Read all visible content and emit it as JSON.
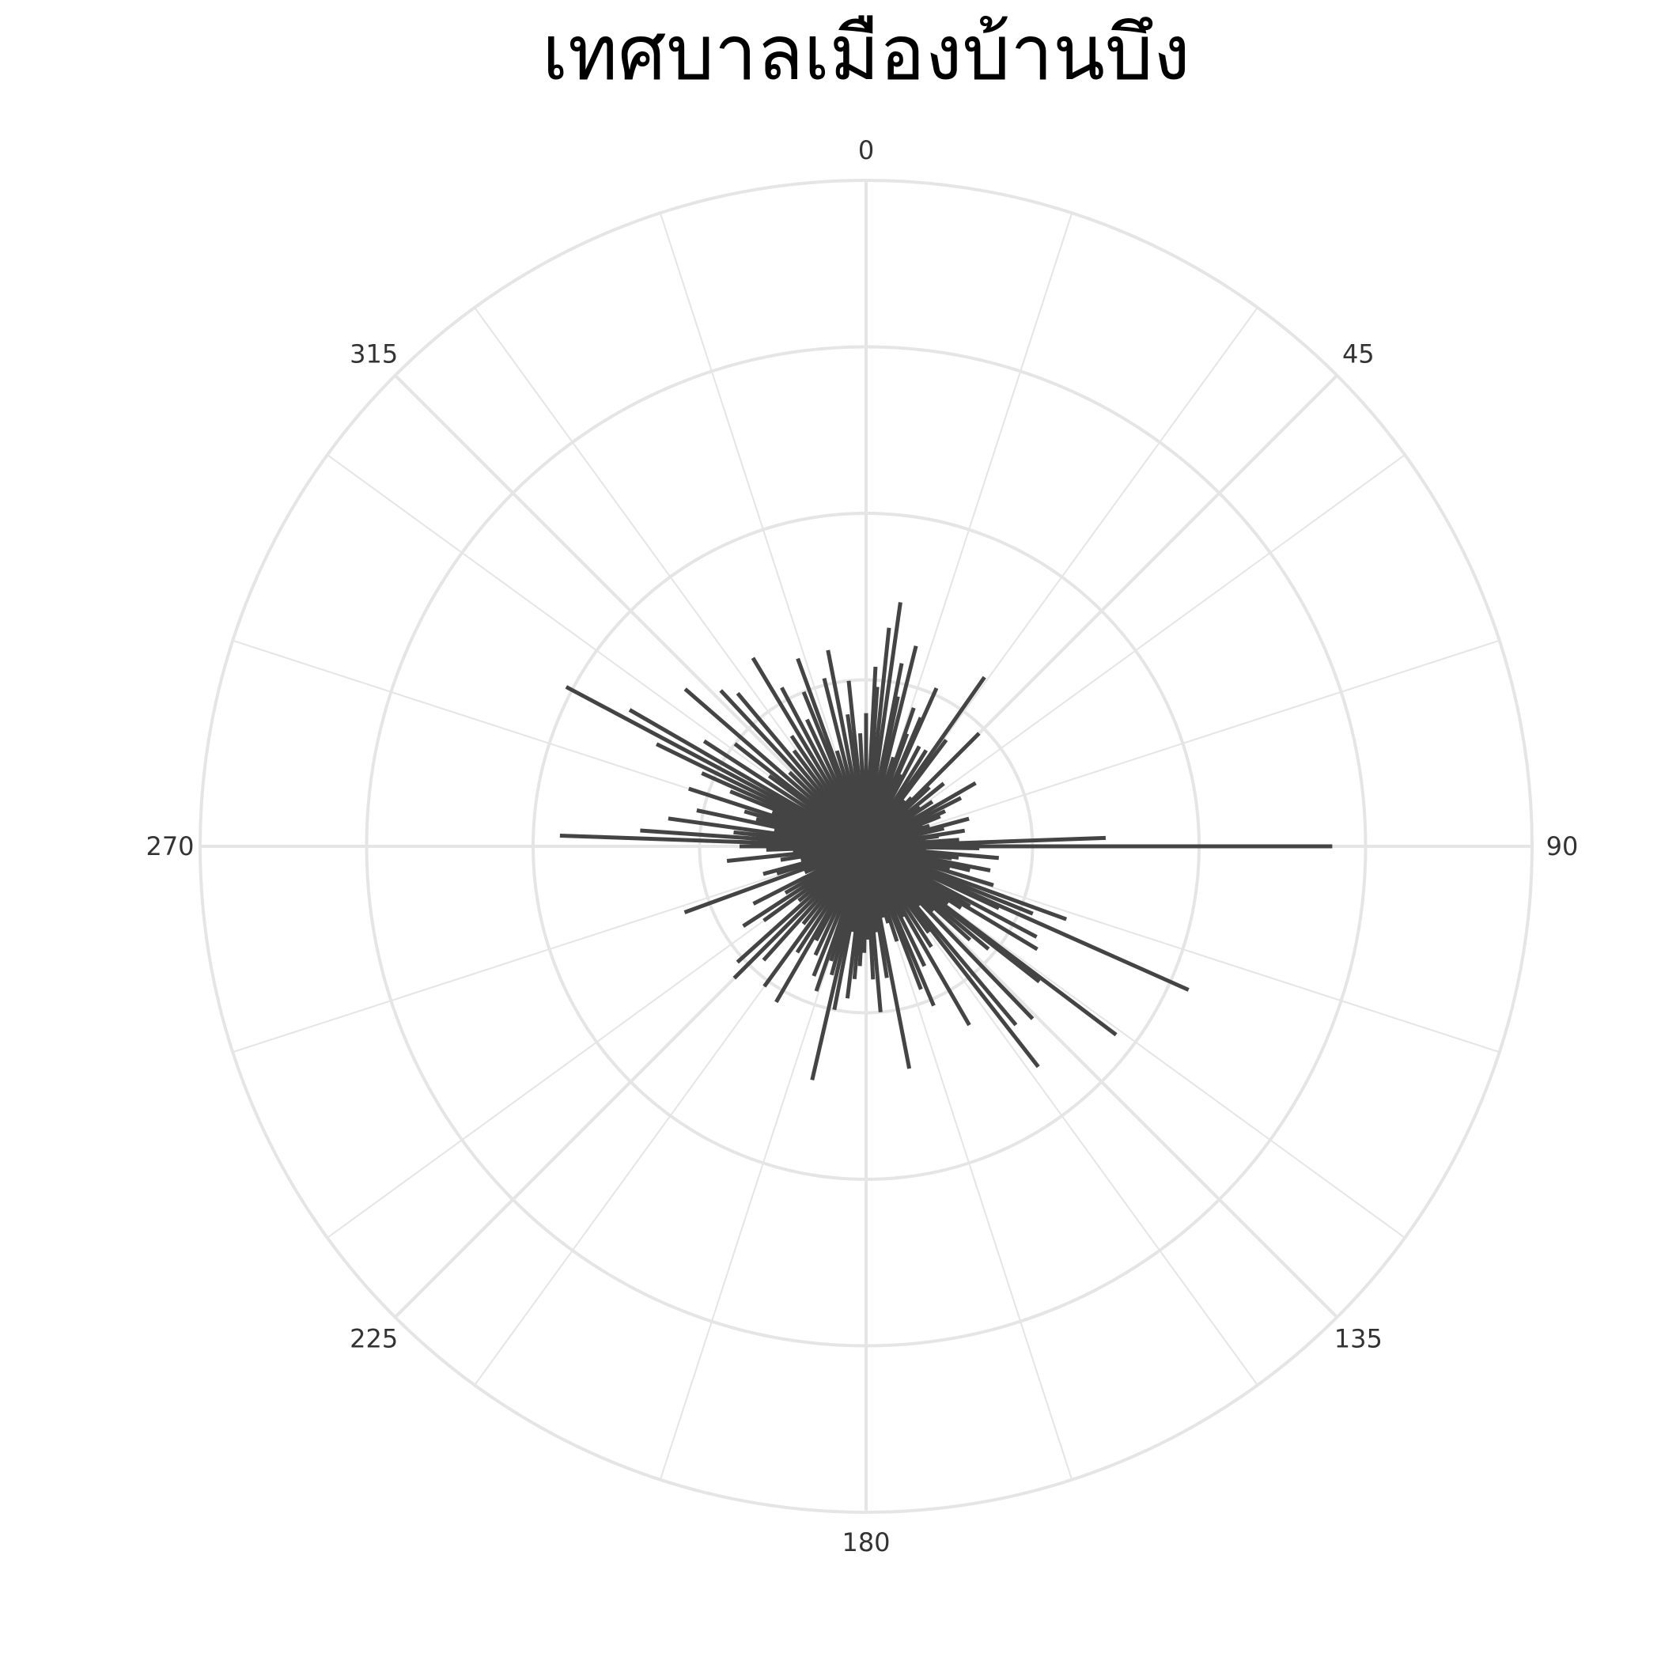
{
  "chart_data": {
    "type": "bar",
    "subtype": "polar-bar",
    "title": "เทศบาลเมืองบ้านบึง",
    "angular_axis": {
      "direction": "clockwise",
      "zero_at": "top",
      "tick_labels": [
        "0",
        "45",
        "90",
        "135",
        "180",
        "225",
        "270",
        "315"
      ]
    },
    "radial_axis": {
      "range": [
        0,
        100
      ],
      "gridlines": [
        25,
        50,
        75,
        100
      ],
      "tick_labels_visible": false
    },
    "grid": true,
    "legend": "none",
    "colors": {
      "bars": "#444444",
      "grid": "#e5e5e5",
      "ticks": "#333333",
      "title": "#000000"
    },
    "bars": {
      "theta": [
        0,
        3,
        4,
        6,
        8,
        11,
        12,
        14,
        17,
        19,
        20,
        23,
        24,
        26,
        28,
        32,
        35,
        37,
        40,
        43,
        45,
        47,
        51,
        54,
        56,
        60,
        63,
        66,
        68,
        70,
        72,
        75,
        77,
        79,
        81,
        82,
        84,
        86,
        88,
        90,
        91,
        93,
        95,
        97,
        98,
        99,
        101,
        103,
        105,
        107,
        108,
        110,
        112,
        114,
        115,
        118,
        120,
        121,
        123,
        125,
        127,
        128,
        130,
        132,
        134,
        136,
        138,
        140,
        142,
        144,
        147,
        150,
        152,
        154,
        157,
        159,
        162,
        164,
        166,
        169,
        171,
        173,
        175,
        177,
        179,
        181,
        183,
        185,
        187,
        189,
        191,
        193,
        195,
        197,
        199,
        202,
        205,
        208,
        210,
        213,
        216,
        219,
        222,
        225,
        228,
        231,
        234,
        237,
        240,
        243,
        247,
        250,
        253,
        255,
        258,
        261,
        264,
        266,
        268,
        270,
        272,
        274,
        276,
        278,
        280,
        282,
        284,
        286,
        288,
        290,
        292,
        294,
        296,
        298,
        300,
        303,
        306,
        308,
        311,
        314,
        317,
        320,
        323,
        326,
        329,
        332,
        335,
        338,
        340,
        343,
        346,
        349,
        352,
        354,
        357
      ],
      "r": [
        20,
        27,
        24,
        33,
        37,
        28,
        23,
        31,
        14,
        22,
        18,
        21,
        26,
        12,
        17,
        17,
        31,
        20,
        9,
        10,
        24,
        13,
        15,
        10,
        12,
        19,
        16,
        13,
        12,
        9,
        10,
        16,
        12,
        8,
        15,
        11,
        9,
        14,
        36,
        70,
        17,
        9,
        20,
        14,
        13,
        11,
        19,
        16,
        13,
        20,
        10,
        32,
        27,
        53,
        22,
        29,
        18,
        30,
        17,
        15,
        47,
        33,
        24,
        21,
        14,
        36,
        12,
        35,
        42,
        16,
        18,
        31,
        12,
        20,
        26,
        23,
        15,
        12,
        11,
        34,
        20,
        13,
        25,
        20,
        14,
        16,
        18,
        20,
        23,
        13,
        25,
        36,
        20,
        18,
        23,
        21,
        18,
        16,
        27,
        19,
        26,
        15,
        23,
        28,
        26,
        13,
        19,
        22,
        14,
        19,
        10,
        29,
        14,
        16,
        10,
        13,
        21,
        11,
        15,
        19,
        46,
        34,
        20,
        30,
        14,
        26,
        17,
        19,
        28,
        15,
        22,
        27,
        35,
        51,
        41,
        29,
        18,
        25,
        36,
        16,
        32,
        30,
        18,
        20,
        33,
        27,
        21,
        25,
        30,
        15,
        26,
        30,
        20,
        25,
        17
      ]
    }
  }
}
